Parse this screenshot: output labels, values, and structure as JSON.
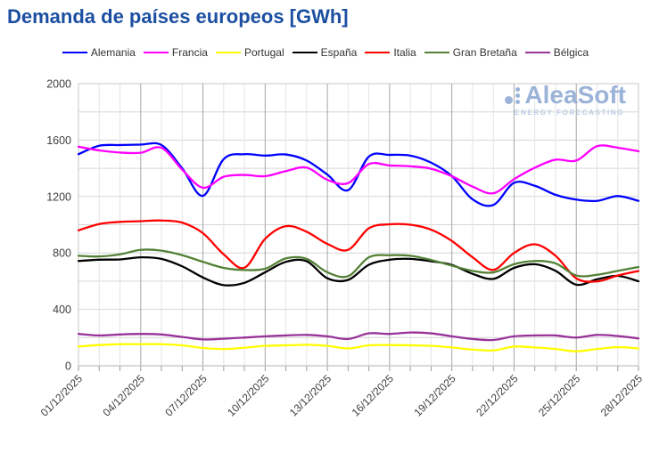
{
  "title": "Demanda de países europeos [GWh]",
  "logo": {
    "name": "AleaSoft",
    "tagline": "ENERGY FORECASTING"
  },
  "chart_data": {
    "type": "line",
    "title": "Demanda de países europeos [GWh]",
    "x_unit": "day",
    "days": 28,
    "x_tick_days": [
      1,
      4,
      7,
      10,
      13,
      16,
      19,
      22,
      25,
      28
    ],
    "x_tick_labels": [
      "01/12/2025",
      "04/12/2025",
      "07/12/2025",
      "10/12/2025",
      "13/12/2025",
      "16/12/2025",
      "19/12/2025",
      "22/12/2025",
      "25/12/2025",
      "28/12/2025"
    ],
    "ylim": [
      0,
      2000
    ],
    "y_ticks": [
      0,
      400,
      800,
      1200,
      1600,
      2000
    ],
    "y_minor_step": 200,
    "grid": {
      "horizontal": true,
      "vertical_minor_every_day": true,
      "vertical_major_every": 3
    },
    "legend_position": "top",
    "series": [
      {
        "name": "Alemania",
        "color": "#0000ff",
        "values": [
          1500,
          1560,
          1565,
          1568,
          1565,
          1400,
          1205,
          1465,
          1500,
          1490,
          1498,
          1455,
          1355,
          1245,
          1483,
          1495,
          1490,
          1440,
          1345,
          1180,
          1140,
          1297,
          1276,
          1212,
          1178,
          1169,
          1203,
          1169
        ]
      },
      {
        "name": "Francia",
        "color": "#ff00ff",
        "values": [
          1553,
          1527,
          1512,
          1510,
          1545,
          1390,
          1262,
          1340,
          1353,
          1344,
          1380,
          1405,
          1318,
          1295,
          1430,
          1420,
          1414,
          1397,
          1344,
          1270,
          1223,
          1323,
          1404,
          1461,
          1455,
          1557,
          1546,
          1521
        ]
      },
      {
        "name": "Portugal",
        "color": "#ffff00",
        "values": [
          136,
          147,
          153,
          153,
          153,
          145,
          126,
          119,
          128,
          141,
          145,
          149,
          141,
          123,
          145,
          147,
          145,
          141,
          130,
          115,
          109,
          136,
          130,
          119,
          102,
          119,
          132,
          123
        ]
      },
      {
        "name": "España",
        "color": "#000000",
        "values": [
          743,
          752,
          754,
          769,
          758,
          705,
          626,
          572,
          588,
          663,
          737,
          741,
          620,
          609,
          716,
          752,
          758,
          741,
          715,
          652,
          616,
          694,
          720,
          673,
          575,
          613,
          637,
          599
        ]
      },
      {
        "name": "Italia",
        "color": "#ff0000",
        "values": [
          960,
          1005,
          1020,
          1025,
          1030,
          1015,
          940,
          790,
          695,
          900,
          990,
          950,
          864,
          822,
          975,
          1003,
          1000,
          965,
          885,
          769,
          680,
          800,
          861,
          780,
          620,
          598,
          640,
          672
        ]
      },
      {
        "name": "Gran Bretaña",
        "color": "#538135",
        "values": [
          780,
          775,
          790,
          822,
          816,
          784,
          737,
          694,
          679,
          688,
          762,
          758,
          663,
          635,
          769,
          784,
          780,
          750,
          710,
          673,
          662,
          720,
          743,
          726,
          640,
          645,
          673,
          700
        ]
      },
      {
        "name": "Bélgica",
        "color": "#993399",
        "values": [
          226,
          215,
          222,
          226,
          222,
          204,
          187,
          192,
          200,
          209,
          215,
          219,
          209,
          190,
          230,
          226,
          236,
          230,
          209,
          190,
          183,
          209,
          215,
          215,
          200,
          219,
          211,
          194
        ]
      }
    ],
    "colors": {
      "title": "#1c4fa1",
      "grid_minor": "#e4e4e4",
      "grid_major_h": "#d6d6d6",
      "grid_major_v": "#a6a6a6",
      "axis_line": "#9a9a9a",
      "tick_text": "#404040",
      "plot_border": "#c9c9c9",
      "logo_blue": "#9bb3d8"
    }
  }
}
